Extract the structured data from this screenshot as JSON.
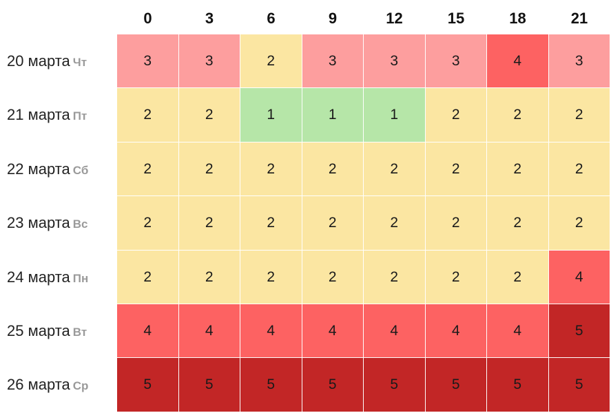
{
  "chart_data": {
    "type": "heatmap",
    "title": "",
    "xlabel": "",
    "ylabel": "",
    "columns": [
      "0",
      "3",
      "6",
      "9",
      "12",
      "15",
      "18",
      "21"
    ],
    "rows": [
      {
        "date": "20 марта",
        "dow": "Чт",
        "values": [
          3,
          3,
          2,
          3,
          3,
          3,
          4,
          3
        ]
      },
      {
        "date": "21 марта",
        "dow": "Пт",
        "values": [
          2,
          2,
          1,
          1,
          1,
          2,
          2,
          2
        ]
      },
      {
        "date": "22 марта",
        "dow": "Сб",
        "values": [
          2,
          2,
          2,
          2,
          2,
          2,
          2,
          2
        ]
      },
      {
        "date": "23 марта",
        "dow": "Вс",
        "values": [
          2,
          2,
          2,
          2,
          2,
          2,
          2,
          2
        ]
      },
      {
        "date": "24 марта",
        "dow": "Пн",
        "values": [
          2,
          2,
          2,
          2,
          2,
          2,
          2,
          4
        ]
      },
      {
        "date": "25 марта",
        "dow": "Вт",
        "values": [
          4,
          4,
          4,
          4,
          4,
          4,
          4,
          5
        ]
      },
      {
        "date": "26 марта",
        "dow": "Ср",
        "values": [
          5,
          5,
          5,
          5,
          5,
          5,
          5,
          5
        ]
      }
    ],
    "color_scale": {
      "1": "#b6e6a8",
      "2": "#fbe6a2",
      "3": "#fd9e9e",
      "4": "#fd6262",
      "5": "#c22626"
    },
    "grid": true,
    "legend": "none"
  }
}
